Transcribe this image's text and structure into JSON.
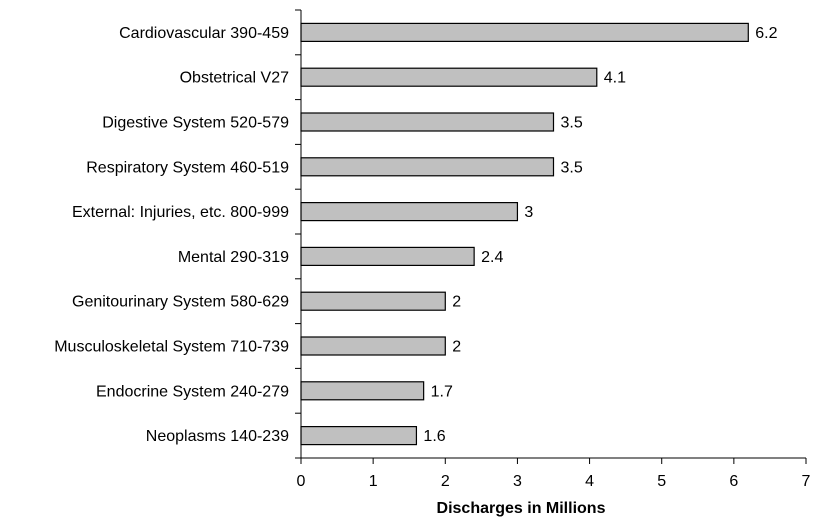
{
  "chart_data": {
    "type": "bar",
    "orientation": "horizontal",
    "categories": [
      "Cardiovascular 390-459",
      "Obstetrical V27",
      "Digestive System 520-579",
      "Respiratory System 460-519",
      "External:  Injuries, etc. 800-999",
      "Mental 290-319",
      "Genitourinary System 580-629",
      "Musculoskeletal System 710-739",
      "Endocrine System 240-279",
      "Neoplasms 140-239"
    ],
    "values": [
      6.2,
      4.1,
      3.5,
      3.5,
      3,
      2.4,
      2,
      2,
      1.7,
      1.6
    ],
    "data_labels": [
      "6.2",
      "4.1",
      "3.5",
      "3.5",
      "3",
      "2.4",
      "2",
      "2",
      "1.7",
      "1.6"
    ],
    "title": "",
    "xlabel": "Discharges in Millions",
    "ylabel": "",
    "xlim": [
      0,
      7
    ],
    "xticks": [
      "0",
      "1",
      "2",
      "3",
      "4",
      "5",
      "6",
      "7"
    ],
    "grid": false,
    "legend": "none",
    "colors": {
      "bar_fill": "#c0c0c0",
      "bar_stroke": "#000000",
      "axis": "#000000"
    }
  }
}
